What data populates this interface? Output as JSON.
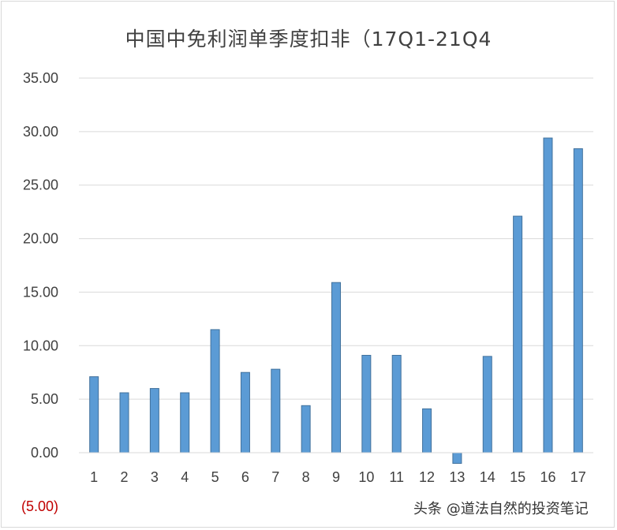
{
  "chart_data": {
    "type": "bar",
    "title": "中国中免利润单季度扣非（17Q1-21Q4",
    "categories": [
      "1",
      "2",
      "3",
      "4",
      "5",
      "6",
      "7",
      "8",
      "9",
      "10",
      "11",
      "12",
      "13",
      "14",
      "15",
      "16",
      "17"
    ],
    "values": [
      7.1,
      5.6,
      6.0,
      5.6,
      11.5,
      7.5,
      7.8,
      4.4,
      15.9,
      9.1,
      9.1,
      4.1,
      -1.0,
      9.0,
      22.1,
      29.4,
      28.4
    ],
    "yticks": [
      "(5.00)",
      "0.00",
      "5.00",
      "10.00",
      "15.00",
      "20.00",
      "25.00",
      "30.00",
      "35.00"
    ],
    "ylim": [
      -5,
      35
    ],
    "grid": true,
    "bar_color": "#5b9bd5",
    "xlabel": "",
    "ylabel": ""
  },
  "watermark": "头条 @道法自然的投资笔记"
}
